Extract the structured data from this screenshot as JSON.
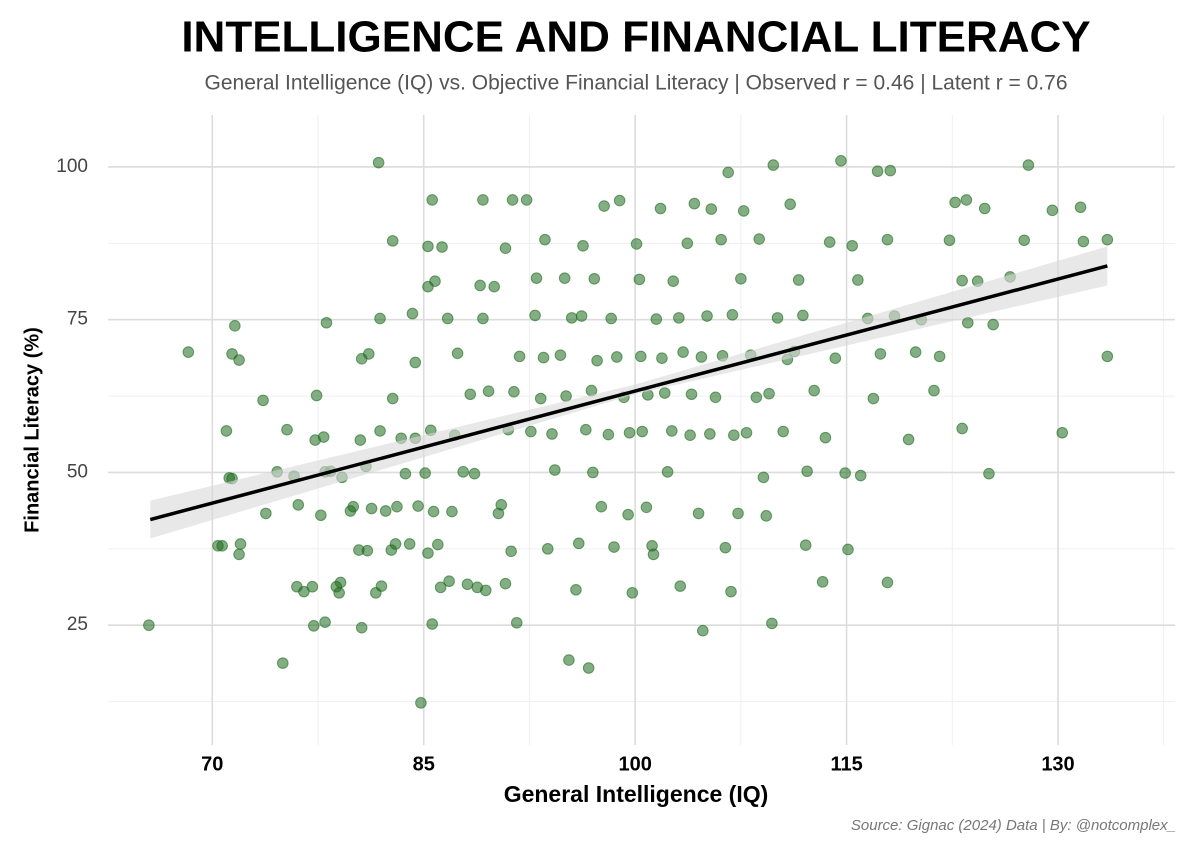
{
  "chart_data": {
    "type": "scatter",
    "title": "INTELLIGENCE AND FINANCIAL LITERACY",
    "subtitle": "General Intelligence (IQ) vs. Objective Financial Literacy | Observed r = 0.46 | Latent r = 0.76",
    "x_label": "General Intelligence (IQ)",
    "y_label": "Financial Literacy (%)",
    "source": "Source: Gignac (2024) Data | By: @notcomplex_",
    "xlim": [
      62.6,
      138.3
    ],
    "ylim": [
      5.4,
      108.5
    ],
    "xticks": [
      70,
      85,
      100,
      115,
      130
    ],
    "yticks": [
      25,
      50,
      75,
      100
    ],
    "x_minor_grid": [
      77.5,
      92.5,
      107.5,
      122.5,
      137.5
    ],
    "y_minor_grid": [
      12.5,
      37.5,
      62.5,
      87.5
    ],
    "grid": true,
    "x": [
      65.5,
      68.3,
      70.4,
      70.7,
      71,
      71.2,
      71.4,
      71.4,
      71.6,
      71.9,
      71.9,
      72,
      73.6,
      73.8,
      74.6,
      75,
      75.3,
      75.8,
      76,
      76.1,
      76.5,
      77.1,
      77.2,
      77.4,
      77.3,
      77.7,
      77.9,
      78,
      78.1,
      78,
      78.4,
      78.8,
      79,
      79.1,
      79.2,
      79.8,
      80,
      80.4,
      80.6,
      80.5,
      80.6,
      80.9,
      81.1,
      81,
      81.3,
      81.6,
      81.8,
      81.9,
      81.9,
      82,
      82.3,
      82.7,
      82.8,
      82.8,
      83,
      83.1,
      83.4,
      83.7,
      84,
      84.2,
      84.4,
      84.4,
      84.6,
      84.8,
      85.1,
      85.3,
      85.3,
      85.3,
      85.5,
      85.6,
      85.8,
      85.6,
      85.7,
      86,
      86.2,
      86.3,
      86.8,
      86.7,
      87,
      87.2,
      87.4,
      87.8,
      88.1,
      88.3,
      88.6,
      88.8,
      89,
      89.2,
      89.2,
      89.4,
      89.6,
      90,
      90.3,
      90.5,
      90.8,
      90.8,
      91,
      91.2,
      91.4,
      91.3,
      91.6,
      91.8,
      92.3,
      92.6,
      92.9,
      93,
      93.3,
      93.6,
      93.8,
      94.3,
      94.7,
      95,
      95.3,
      95.5,
      95.8,
      96,
      96.3,
      96.5,
      96.7,
      96.9,
      97.1,
      97.3,
      97.6,
      97.8,
      98.1,
      98.3,
      98.5,
      98.9,
      99.2,
      99.5,
      99.8,
      100.1,
      100.3,
      100.4,
      100.5,
      100.8,
      101.2,
      101.3,
      101.5,
      101.8,
      102.1,
      102.3,
      102.7,
      103.2,
      103.4,
      103.7,
      103.9,
      104.2,
      104.5,
      104.8,
      105.1,
      105.4,
      105.7,
      106.1,
      106.4,
      106.6,
      106.8,
      107,
      107.3,
      107.5,
      107.7,
      108.2,
      108.6,
      108.8,
      109.1,
      109.3,
      109.7,
      109.8,
      110.1,
      110.5,
      111,
      111.3,
      111.6,
      112.1,
      112.2,
      112.7,
      113.3,
      113.5,
      113.8,
      114.2,
      114.6,
      114.9,
      115.1,
      115.4,
      115.8,
      116,
      116.5,
      116.9,
      117.2,
      117.4,
      117.9,
      117.9,
      118.1,
      118.4,
      119.4,
      119.9,
      120.3,
      121.2,
      121.6,
      122.3,
      122.7,
      123.2,
      123.2,
      123.5,
      123.6,
      124.3,
      124.8,
      125.1,
      125.4,
      126.6,
      127.6,
      127.9,
      129.6,
      130.3,
      131.6,
      131.8,
      133.5,
      133.5,
      93.5,
      94.1,
      95.1,
      96.2,
      97,
      98.7,
      99.6,
      100.9,
      101.9,
      102.6,
      103.1,
      104,
      104.7,
      105.3,
      106.2,
      106.9,
      107.9,
      109.5,
      110.8,
      111.9
    ],
    "series": [
      {
        "color": "#1d6a1d",
        "values": [
          25,
          69.7,
          38,
          38,
          56.8,
          49.1,
          49,
          69.4,
          74,
          68.4,
          36.6,
          38.3,
          61.8,
          43.3,
          50.1,
          18.8,
          57,
          49.4,
          31.3,
          44.7,
          30.5,
          31.3,
          24.9,
          62.6,
          55.3,
          43,
          55.8,
          50.1,
          74.5,
          25.5,
          50.2,
          31.3,
          30.3,
          32,
          49.2,
          43.7,
          44.4,
          37.3,
          24.6,
          55.3,
          68.6,
          51,
          69.4,
          37.2,
          44.1,
          30.3,
          100.7,
          75.2,
          56.8,
          31.4,
          43.7,
          37.3,
          87.9,
          62.1,
          38.3,
          44.4,
          55.6,
          49.8,
          38.3,
          76,
          55.6,
          68,
          44.5,
          12.3,
          49.9,
          87,
          36.8,
          80.4,
          56.9,
          94.6,
          81.3,
          25.2,
          43.6,
          38.2,
          31.2,
          86.9,
          32.2,
          75.2,
          43.6,
          56.1,
          69.5,
          50.1,
          31.7,
          62.8,
          49.8,
          31.2,
          80.6,
          75.2,
          94.6,
          30.7,
          63.3,
          80.4,
          43.3,
          44.7,
          86.7,
          31.8,
          57,
          37.1,
          63.2,
          94.6,
          25.4,
          69,
          94.6,
          56.7,
          75.7,
          81.8,
          62.1,
          88.1,
          37.5,
          50.4,
          69.2,
          81.8,
          19.3,
          75.3,
          30.8,
          38.4,
          87.1,
          57,
          18,
          63.4,
          81.7,
          68.3,
          44.4,
          93.6,
          56.2,
          75.2,
          37.8,
          94.5,
          62.3,
          43.1,
          30.3,
          87.4,
          81.6,
          69,
          56.7,
          44.3,
          38,
          36.6,
          75.1,
          93.2,
          63,
          50.1,
          81.3,
          31.4,
          69.7,
          87.5,
          56.1,
          94,
          43.3,
          24.1,
          75.6,
          93.1,
          62.3,
          88.1,
          37.7,
          99.1,
          30.5,
          56.1,
          43.3,
          81.7,
          92.8,
          69.2,
          62.3,
          88.2,
          49.2,
          42.9,
          25.3,
          100.3,
          75.3,
          56.7,
          93.9,
          69.8,
          81.5,
          38.1,
          50.2,
          63.4,
          32.1,
          55.7,
          87.7,
          68.7,
          101,
          49.9,
          37.4,
          87.1,
          81.5,
          49.5,
          75.2,
          62.1,
          99.3,
          69.4,
          32,
          88.1,
          99.4,
          75.6,
          55.4,
          69.7,
          75,
          63.4,
          69,
          88,
          94.2,
          57.2,
          81.4,
          94.6,
          74.5,
          81.3,
          93.2,
          49.8,
          74.2,
          82,
          88,
          100.3,
          92.9,
          56.5,
          93.4,
          87.8,
          88.1,
          69,
          68.8,
          56.3,
          62.5,
          75.6,
          50,
          68.9,
          56.5,
          62.7,
          68.7,
          56.8,
          75.3,
          62.8,
          68.9,
          56.3,
          69.1,
          75.8,
          56.5,
          62.9,
          68.5,
          75.7
        ]
      }
    ],
    "trend": {
      "color": "#000000",
      "x": [
        65.6,
        133.5
      ],
      "values": [
        42.3,
        83.8
      ]
    },
    "band": {
      "color": "#d9d9d9",
      "x": [
        65.6,
        100,
        133.5
      ],
      "lower": [
        39.2,
        62.8,
        80.6
      ],
      "upper": [
        45.4,
        64.4,
        87
      ]
    }
  }
}
